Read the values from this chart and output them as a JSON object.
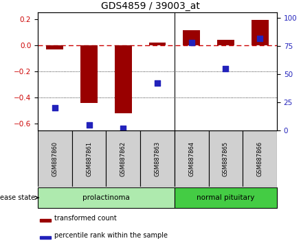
{
  "title": "GDS4859 / 39003_at",
  "samples": [
    "GSM887860",
    "GSM887861",
    "GSM887862",
    "GSM887863",
    "GSM887864",
    "GSM887865",
    "GSM887866"
  ],
  "red_bars": [
    -0.03,
    -0.44,
    -0.52,
    0.02,
    0.115,
    0.04,
    0.195
  ],
  "blue_dots_right_axis": [
    20,
    5,
    2,
    42,
    78,
    55,
    82
  ],
  "ylim_left": [
    -0.65,
    0.25
  ],
  "ylim_right": [
    0,
    105
  ],
  "yticks_left": [
    0.2,
    0.0,
    -0.2,
    -0.4,
    -0.6
  ],
  "yticks_right": [
    100,
    75,
    50,
    25,
    0
  ],
  "groups": [
    {
      "label": "prolactinoma",
      "indices": [
        0,
        1,
        2,
        3
      ],
      "color": "#aeeaae"
    },
    {
      "label": "normal pituitary",
      "indices": [
        4,
        5,
        6
      ],
      "color": "#44cc44"
    }
  ],
  "disease_state_label": "disease state",
  "legend_red": "transformed count",
  "legend_blue": "percentile rank within the sample",
  "bar_color": "#990000",
  "dot_color": "#2222bb",
  "dashed_line_color": "#cc0000",
  "bg_color": "#ffffff",
  "title_fontsize": 10
}
